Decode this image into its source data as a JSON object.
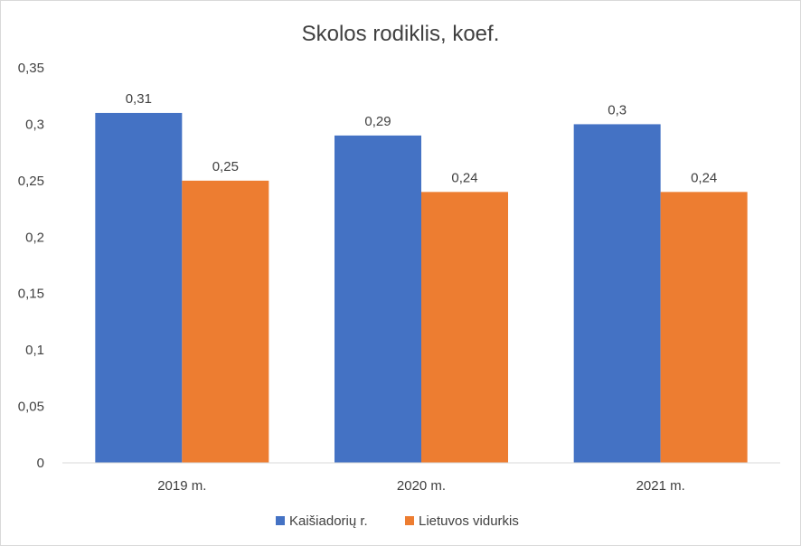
{
  "chart_data": {
    "type": "bar",
    "title": "Skolos rodiklis, koef.",
    "xlabel": "",
    "ylabel": "",
    "categories": [
      "2019 m.",
      "2020 m.",
      "2021 m."
    ],
    "series": [
      {
        "name": "Kaišiadorių r.",
        "values": [
          0.31,
          0.29,
          0.3
        ],
        "labels": [
          "0,31",
          "0,29",
          "0,3"
        ],
        "color": "#4472C4"
      },
      {
        "name": "Lietuvos vidurkis",
        "values": [
          0.25,
          0.24,
          0.24
        ],
        "labels": [
          "0,25",
          "0,24",
          "0,24"
        ],
        "color": "#ED7D31"
      }
    ],
    "ylim": [
      0,
      0.35
    ],
    "yticks": [
      0,
      0.05,
      0.1,
      0.15,
      0.2,
      0.25,
      0.3,
      0.35
    ],
    "ytick_labels": [
      "0",
      "0,05",
      "0,1",
      "0,15",
      "0,2",
      "0,25",
      "0,3",
      "0,35"
    ],
    "grid": false,
    "legend_position": "bottom"
  }
}
